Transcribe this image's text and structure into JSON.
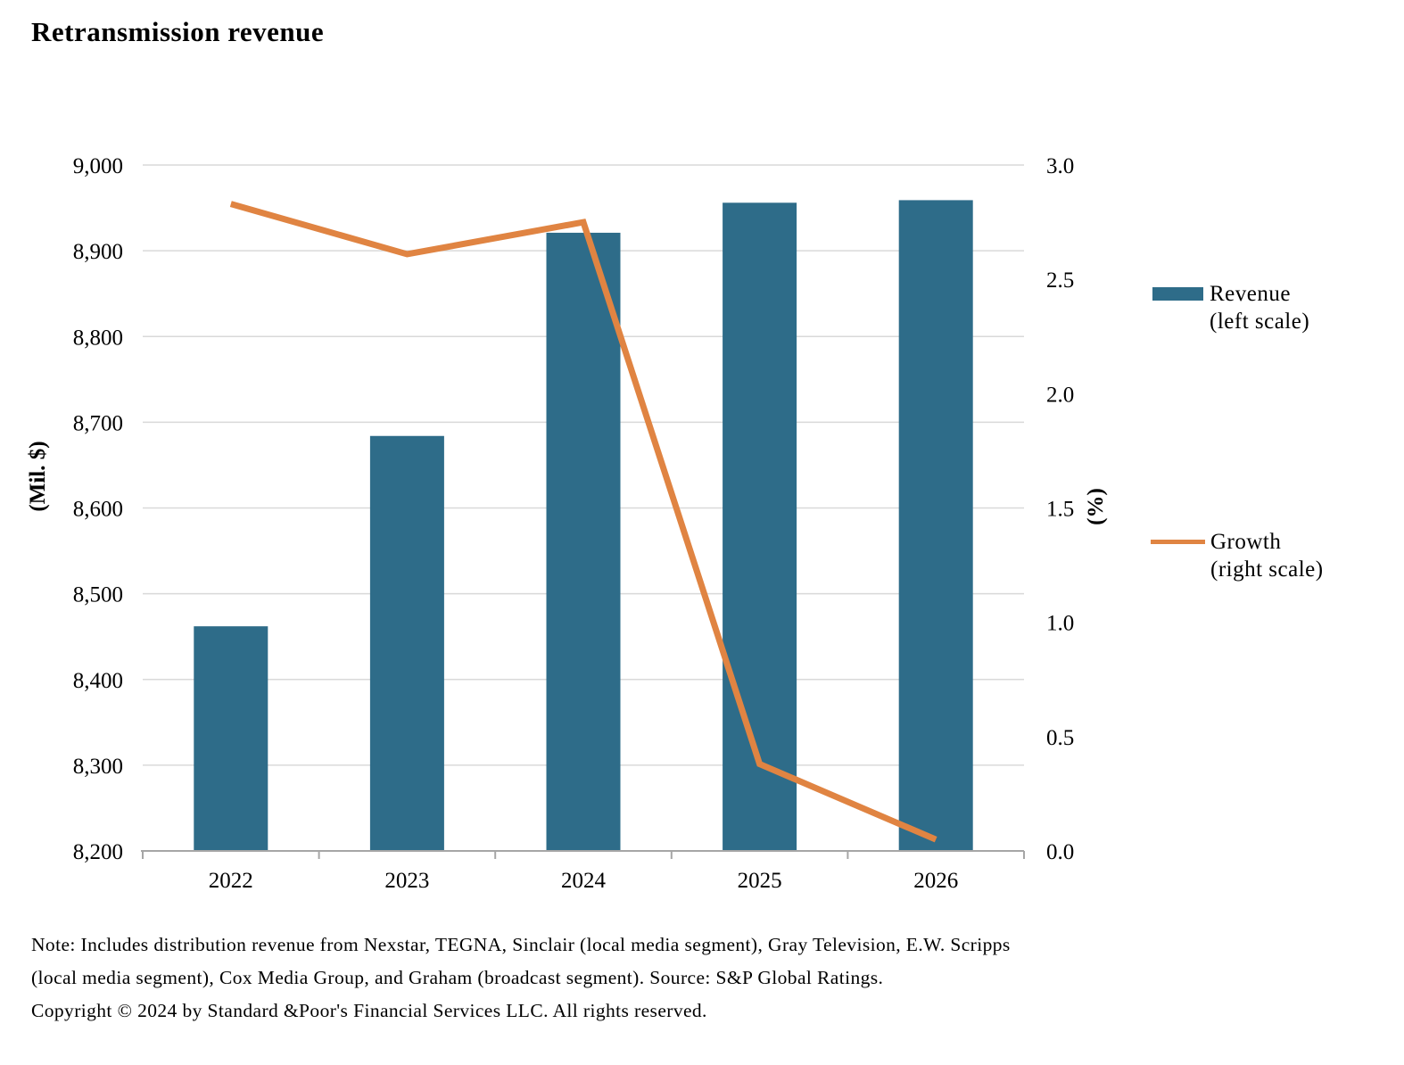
{
  "chart_data": {
    "type": "combo-bar-line",
    "title": "Retransmission revenue",
    "categories": [
      "2022",
      "2023",
      "2024",
      "2025",
      "2026"
    ],
    "series": [
      {
        "name": "Revenue (left scale)",
        "type": "bar",
        "axis": "left",
        "values": [
          8462,
          8684,
          8921,
          8956,
          8959
        ]
      },
      {
        "name": "Growth (right scale)",
        "type": "line",
        "axis": "right",
        "values": [
          2.83,
          2.61,
          2.75,
          0.38,
          0.05
        ]
      }
    ],
    "left_axis": {
      "title": "(Mil. $)",
      "min": 8200,
      "max": 9000,
      "step": 100,
      "tick_labels": [
        "9,000",
        "8,900",
        "8,800",
        "8,700",
        "8,600",
        "8,500",
        "8,400",
        "8,300",
        "8,200"
      ]
    },
    "right_axis": {
      "title": "(%)",
      "min": 0,
      "max": 3,
      "step": 0.5,
      "tick_labels": [
        "3.0",
        "2.5",
        "2.0",
        "1.5",
        "1.0",
        "0.5",
        "0.0"
      ]
    },
    "grid": true,
    "legend_position": "right"
  },
  "legend": {
    "revenue": {
      "line1": "Revenue",
      "line2": "(left scale)"
    },
    "growth": {
      "line1": "Growth",
      "line2": "(right scale)"
    }
  },
  "footer": {
    "note_line1": "Note: Includes distribution revenue from Nexstar, TEGNA, Sinclair (local media segment), Gray Television, E.W. Scripps",
    "note_line2": "(local media segment), Cox Media Group, and Graham (broadcast segment). Source: S&P Global Ratings.",
    "copyright": "Copyright © 2024 by Standard &Poor's Financial Services LLC. All rights reserved."
  },
  "colors": {
    "bar": "#2E6C89",
    "line": "#E08442",
    "gridline": "#D9D9D9",
    "axis_line": "#A6A6A6",
    "text": "#000000"
  }
}
